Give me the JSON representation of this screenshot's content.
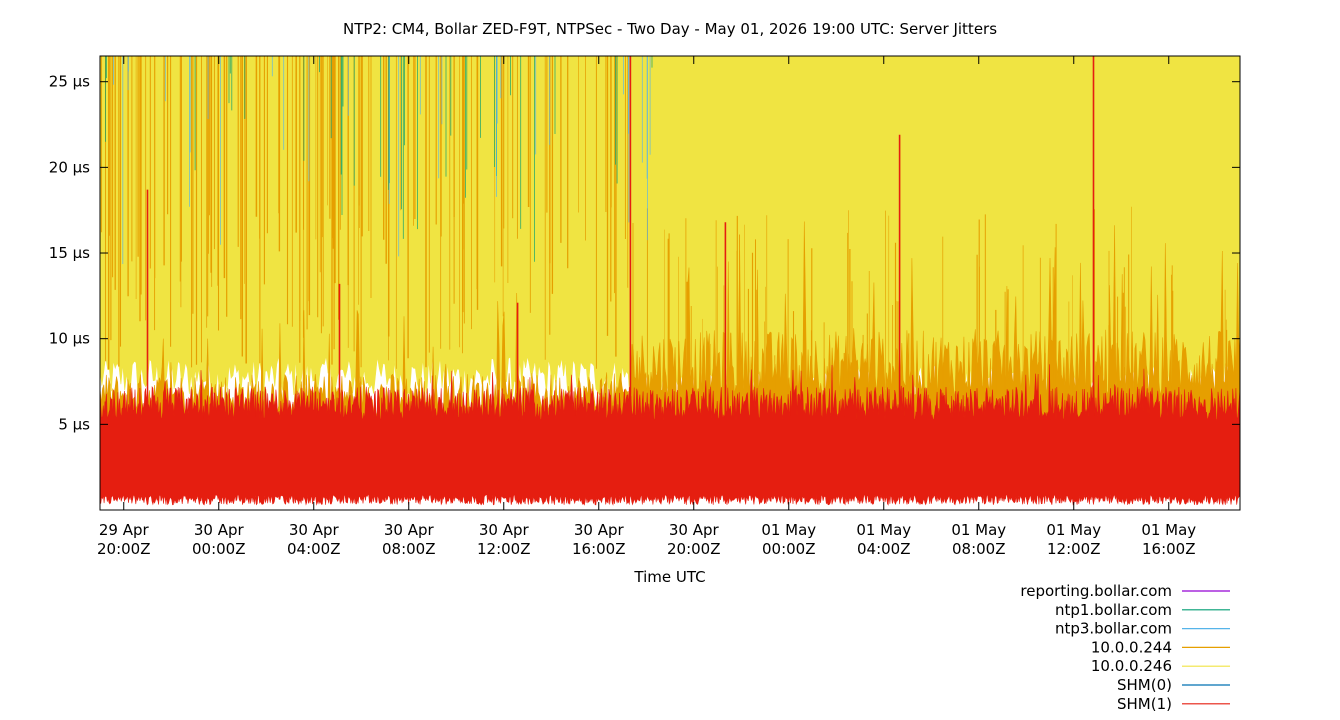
{
  "chart_data": {
    "type": "line",
    "title": "NTP2: CM4, Bollar ZED-F9T, NTPSec - Two Day - May 01, 2026 19:00 UTC: Server Jitters",
    "xlabel": "Time UTC",
    "ylabel": "",
    "x_range": [
      "2026-04-29T19:00Z",
      "2026-05-01T19:00Z"
    ],
    "ylim": [
      0,
      26.5
    ],
    "y_unit": "µs",
    "y_ticks": [
      {
        "value": 5,
        "label": "5 µs"
      },
      {
        "value": 10,
        "label": "10 µs"
      },
      {
        "value": 15,
        "label": "15 µs"
      },
      {
        "value": 20,
        "label": "20 µs"
      },
      {
        "value": 25,
        "label": "25 µs"
      }
    ],
    "x_ticks": [
      {
        "time": "2026-04-29T20:00Z",
        "line1": "29 Apr",
        "line2": "20:00Z"
      },
      {
        "time": "2026-04-30T00:00Z",
        "line1": "30 Apr",
        "line2": "00:00Z"
      },
      {
        "time": "2026-04-30T04:00Z",
        "line1": "30 Apr",
        "line2": "04:00Z"
      },
      {
        "time": "2026-04-30T08:00Z",
        "line1": "30 Apr",
        "line2": "08:00Z"
      },
      {
        "time": "2026-04-30T12:00Z",
        "line1": "30 Apr",
        "line2": "12:00Z"
      },
      {
        "time": "2026-04-30T16:00Z",
        "line1": "30 Apr",
        "line2": "16:00Z"
      },
      {
        "time": "2026-04-30T20:00Z",
        "line1": "30 Apr",
        "line2": "20:00Z"
      },
      {
        "time": "2026-05-01T00:00Z",
        "line1": "01 May",
        "line2": "00:00Z"
      },
      {
        "time": "2026-05-01T04:00Z",
        "line1": "01 May",
        "line2": "04:00Z"
      },
      {
        "time": "2026-05-01T08:00Z",
        "line1": "01 May",
        "line2": "08:00Z"
      },
      {
        "time": "2026-05-01T12:00Z",
        "line1": "01 May",
        "line2": "12:00Z"
      },
      {
        "time": "2026-05-01T16:00Z",
        "line1": "01 May",
        "line2": "16:00Z"
      }
    ],
    "grid": false,
    "legend_position": "bottom-right",
    "series": [
      {
        "name": "reporting.bollar.com",
        "color": "#9400d3",
        "level_range": [
          0,
          0
        ]
      },
      {
        "name": "ntp1.bollar.com",
        "color": "#009e73",
        "level_range": [
          2,
          26.5
        ]
      },
      {
        "name": "ntp3.bollar.com",
        "color": "#56b4e9",
        "level_range": [
          2,
          26.5
        ]
      },
      {
        "name": "10.0.0.244",
        "color": "#e69f00",
        "level_range": [
          3,
          26.5
        ]
      },
      {
        "name": "10.0.0.246",
        "color": "#f0e442",
        "level_range": [
          5,
          26.5
        ]
      },
      {
        "name": "SHM(0)",
        "color": "#0072b2",
        "level_range": [
          0,
          0
        ]
      },
      {
        "name": "SHM(1)",
        "color": "#e51e10",
        "level_range": [
          0.5,
          8
        ],
        "spikes": [
          {
            "time": "2026-04-29T21:00Z",
            "value": 18.7
          },
          {
            "time": "2026-04-30T05:05Z",
            "value": 13.2
          },
          {
            "time": "2026-04-30T12:35Z",
            "value": 12.1
          },
          {
            "time": "2026-04-30T17:20Z",
            "value": 26.5
          },
          {
            "time": "2026-04-30T21:20Z",
            "value": 16.8
          },
          {
            "time": "2026-05-01T04:40Z",
            "value": 21.9
          },
          {
            "time": "2026-05-01T12:50Z",
            "value": 26.5
          }
        ]
      }
    ]
  }
}
